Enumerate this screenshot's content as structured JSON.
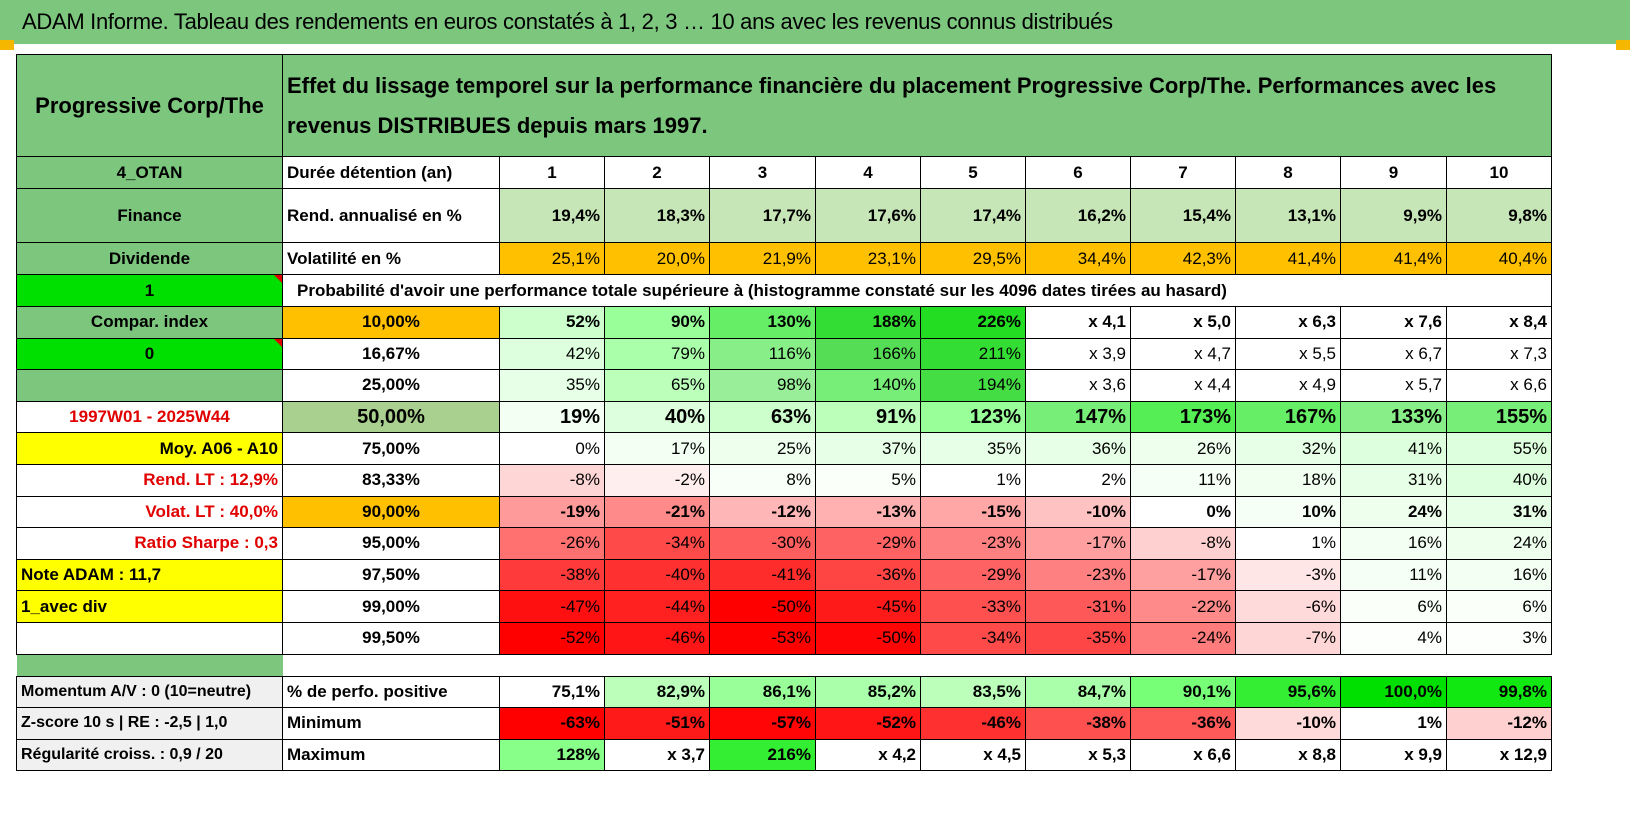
{
  "banner": "ADAM Informe. Tableau des rendements en euros constatés à 1, 2, 3 … 10 ans avec les revenus connus distribués",
  "header": {
    "asset": "Progressive Corp/The",
    "description": "Effet du lissage temporel sur la performance financière du placement Progressive Corp/The. Performances avec les revenus DISTRIBUES depuis mars 1997."
  },
  "side": [
    "4_OTAN",
    "Finance",
    "Dividende",
    "1",
    "Compar. index",
    "0",
    "",
    "1997W01 - 2025W44",
    "Moy. A06 - A10",
    "Rend. LT :    12,9%",
    "Volat. LT :    40,0%",
    "Ratio Sharpe :    0,3",
    "Note ADAM : 11,7",
    "1_avec div",
    ""
  ],
  "labels": {
    "duration": "Durée détention (an)",
    "rend": "Rend. annualisé en %",
    "vol": "Volatilité en %",
    "prob": "Probabilité d'avoir une performance totale supérieure à (histogramme constaté sur les 4096 dates tirées au hasard)"
  },
  "years": [
    "1",
    "2",
    "3",
    "4",
    "5",
    "6",
    "7",
    "8",
    "9",
    "10"
  ],
  "rend": [
    "19,4%",
    "18,3%",
    "17,7%",
    "17,6%",
    "17,4%",
    "16,2%",
    "15,4%",
    "13,1%",
    "9,9%",
    "9,8%"
  ],
  "vol": [
    "25,1%",
    "20,0%",
    "21,9%",
    "23,1%",
    "29,5%",
    "34,4%",
    "42,3%",
    "41,4%",
    "41,4%",
    "40,4%"
  ],
  "prob_rows": [
    {
      "p": "10,00%",
      "v": [
        "52%",
        "90%",
        "130%",
        "188%",
        "226%",
        "x 4,1",
        "x 5,0",
        "x 6,3",
        "x 7,6",
        "x 8,4"
      ],
      "bg": [
        "#ccffcc",
        "#99ff99",
        "#66ee66",
        "#33dd33",
        "#22dd22",
        "#ffffff",
        "#ffffff",
        "#ffffff",
        "#ffffff",
        "#ffffff"
      ]
    },
    {
      "p": "16,67%",
      "v": [
        "42%",
        "79%",
        "116%",
        "166%",
        "211%",
        "x 3,9",
        "x 4,7",
        "x 5,5",
        "x 6,7",
        "x 7,3"
      ],
      "bg": [
        "#ddffdd",
        "#aaffaa",
        "#88ee88",
        "#55dd55",
        "#33dd33",
        "#ffffff",
        "#ffffff",
        "#ffffff",
        "#ffffff",
        "#ffffff"
      ]
    },
    {
      "p": "25,00%",
      "v": [
        "35%",
        "65%",
        "98%",
        "140%",
        "194%",
        "x 3,6",
        "x 4,4",
        "x 4,9",
        "x 5,7",
        "x 6,6"
      ],
      "bg": [
        "#e6ffe6",
        "#bbffbb",
        "#99ee99",
        "#77ee77",
        "#44dd44",
        "#ffffff",
        "#ffffff",
        "#ffffff",
        "#ffffff",
        "#ffffff"
      ]
    },
    {
      "p": "50,00%",
      "v": [
        "19%",
        "40%",
        "63%",
        "91%",
        "123%",
        "147%",
        "173%",
        "167%",
        "133%",
        "155%"
      ],
      "bg": [
        "#f2fff2",
        "#ddffdd",
        "#ccffcc",
        "#bbffbb",
        "#99ff99",
        "#77ee77",
        "#55ee55",
        "#66ee66",
        "#88ee88",
        "#77ee77"
      ]
    },
    {
      "p": "75,00%",
      "v": [
        "0%",
        "17%",
        "25%",
        "37%",
        "35%",
        "36%",
        "26%",
        "32%",
        "41%",
        "55%"
      ],
      "bg": [
        "#ffffff",
        "#f2fff2",
        "#eeffee",
        "#e6ffe6",
        "#e6ffe6",
        "#e6ffe6",
        "#eeffee",
        "#e6ffe6",
        "#ddffdd",
        "#ddffdd"
      ]
    },
    {
      "p": "83,33%",
      "v": [
        "-8%",
        "-2%",
        "8%",
        "5%",
        "1%",
        "2%",
        "11%",
        "18%",
        "31%",
        "40%"
      ],
      "bg": [
        "#ffd6d6",
        "#ffeeee",
        "#f8fff8",
        "#fafffa",
        "#ffffff",
        "#ffffff",
        "#f5fff5",
        "#f0fff0",
        "#e6ffe6",
        "#ddffdd"
      ]
    },
    {
      "p": "90,00%",
      "v": [
        "-19%",
        "-21%",
        "-12%",
        "-13%",
        "-15%",
        "-10%",
        "0%",
        "10%",
        "24%",
        "31%"
      ],
      "bg": [
        "#ff9a9a",
        "#ff8a8a",
        "#ffb6b6",
        "#ffb0b0",
        "#ffa6a6",
        "#ffc2c2",
        "#ffffff",
        "#f5fff5",
        "#eeffee",
        "#e6ffe6"
      ]
    },
    {
      "p": "95,00%",
      "v": [
        "-26%",
        "-34%",
        "-30%",
        "-29%",
        "-23%",
        "-17%",
        "-8%",
        "1%",
        "16%",
        "24%"
      ],
      "bg": [
        "#ff7070",
        "#ff4a4a",
        "#ff5e5e",
        "#ff6262",
        "#ff8080",
        "#ff9f9f",
        "#ffd0d0",
        "#ffffff",
        "#f2fff2",
        "#eeffee"
      ]
    },
    {
      "p": "97,50%",
      "v": [
        "-38%",
        "-40%",
        "-41%",
        "-36%",
        "-29%",
        "-23%",
        "-17%",
        "-3%",
        "11%",
        "16%"
      ],
      "bg": [
        "#ff3a3a",
        "#ff3030",
        "#ff2c2c",
        "#ff4444",
        "#ff6262",
        "#ff8080",
        "#ffa0a0",
        "#ffe6e6",
        "#f5fff5",
        "#f2fff2"
      ]
    },
    {
      "p": "99,00%",
      "v": [
        "-47%",
        "-44%",
        "-50%",
        "-45%",
        "-33%",
        "-31%",
        "-22%",
        "-6%",
        "6%",
        "6%"
      ],
      "bg": [
        "#ff1010",
        "#ff2020",
        "#ff0000",
        "#ff1a1a",
        "#ff5050",
        "#ff5858",
        "#ff8a8a",
        "#ffdada",
        "#fafffa",
        "#fafffa"
      ]
    },
    {
      "p": "99,50%",
      "v": [
        "-52%",
        "-46%",
        "-53%",
        "-50%",
        "-34%",
        "-35%",
        "-24%",
        "-7%",
        "4%",
        "3%"
      ],
      "bg": [
        "#ff0000",
        "#ff1515",
        "#ff0000",
        "#ff0505",
        "#ff4a4a",
        "#ff4646",
        "#ff7c7c",
        "#ffd6d6",
        "#fcfffc",
        "#fcfffc"
      ]
    }
  ],
  "foot_rows": [
    {
      "side": "Momentum A/V : 0 (10=neutre)",
      "label": "% de perfo. positive",
      "v": [
        "75,1%",
        "82,9%",
        "86,1%",
        "85,2%",
        "83,5%",
        "84,7%",
        "90,1%",
        "95,6%",
        "100,0%",
        "99,8%"
      ],
      "bg": [
        "#ffffff",
        "#bbffbb",
        "#99ff99",
        "#aaffaa",
        "#bbffbb",
        "#aaffaa",
        "#77ff77",
        "#33ee33",
        "#00e000",
        "#11e811"
      ]
    },
    {
      "side": "Z-score 10 s | RE : -2,5 | 1,0",
      "label": "Minimum",
      "v": [
        "-63%",
        "-51%",
        "-57%",
        "-52%",
        "-46%",
        "-38%",
        "-36%",
        "-10%",
        "1%",
        "-12%"
      ],
      "bg": [
        "#ff0000",
        "#ff1a1a",
        "#ff0505",
        "#ff1515",
        "#ff3030",
        "#ff5050",
        "#ff5a5a",
        "#ffdada",
        "#ffffff",
        "#ffd0d0"
      ]
    },
    {
      "side": "Régularité croiss. : 0,9 / 20",
      "label": "Maximum",
      "v": [
        "128%",
        "x 3,7",
        "216%",
        "x 4,2",
        "x 4,5",
        "x 5,3",
        "x 6,6",
        "x 8,8",
        "x 9,9",
        "x 12,9"
      ],
      "bg": [
        "#88ff88",
        "#ffffff",
        "#33ee33",
        "#ffffff",
        "#ffffff",
        "#ffffff",
        "#ffffff",
        "#ffffff",
        "#ffffff",
        "#ffffff"
      ]
    }
  ],
  "colors": {
    "header_green": "#7cc67e",
    "orange": "#ffc000",
    "yellow": "#ffff00",
    "lime": "#00e000",
    "red_text": "#e00000"
  }
}
